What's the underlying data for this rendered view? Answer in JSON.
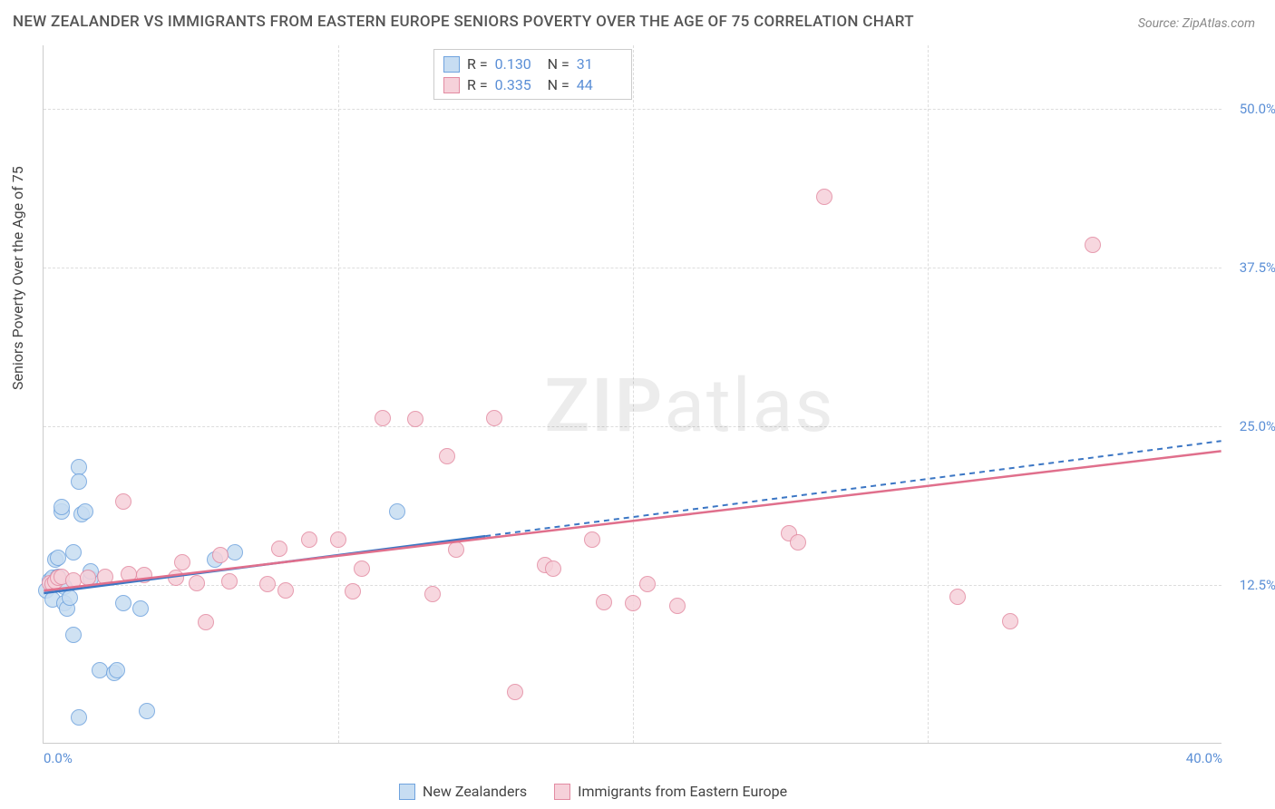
{
  "title": "NEW ZEALANDER VS IMMIGRANTS FROM EASTERN EUROPE SENIORS POVERTY OVER THE AGE OF 75 CORRELATION CHART",
  "source": "Source: ZipAtlas.com",
  "y_axis_label": "Seniors Poverty Over the Age of 75",
  "watermark_bold": "ZIP",
  "watermark_light": "atlas",
  "chart": {
    "type": "scatter",
    "xlim": [
      0,
      40
    ],
    "ylim": [
      0,
      55
    ],
    "xticks": [
      {
        "v": 0,
        "label": "0.0%",
        "anchor": "start"
      },
      {
        "v": 40,
        "label": "40.0%",
        "anchor": "end"
      }
    ],
    "yticks": [
      {
        "v": 12.5,
        "label": "12.5%"
      },
      {
        "v": 25.0,
        "label": "25.0%"
      },
      {
        "v": 37.5,
        "label": "37.5%"
      },
      {
        "v": 50.0,
        "label": "50.0%"
      }
    ],
    "xgrid": [
      10,
      20,
      30
    ],
    "ygrid": [
      12.5,
      25.0,
      37.5,
      50.0
    ],
    "background_color": "#ffffff",
    "grid_color": "#dddddd",
    "point_radius": 9,
    "point_border_width": 1.4,
    "series": [
      {
        "name": "New Zealanders",
        "fill": "#c7ddf2",
        "stroke": "#6fa3de",
        "R": "0.130",
        "N": "31",
        "trend": {
          "x1": 0,
          "y1": 11.8,
          "x2": 15,
          "y2": 16.3,
          "color": "#3b76c4",
          "dash_to": 40,
          "dash_y2": 23.8
        },
        "points": [
          [
            0.1,
            12.0
          ],
          [
            0.2,
            12.8
          ],
          [
            0.3,
            11.3
          ],
          [
            0.3,
            13.0
          ],
          [
            0.4,
            14.4
          ],
          [
            0.5,
            14.6
          ],
          [
            0.5,
            13.1
          ],
          [
            0.6,
            18.2
          ],
          [
            0.6,
            18.6
          ],
          [
            0.7,
            12.3
          ],
          [
            0.7,
            11.0
          ],
          [
            0.8,
            10.6
          ],
          [
            0.9,
            11.4
          ],
          [
            1.0,
            15.0
          ],
          [
            1.2,
            21.7
          ],
          [
            1.3,
            18.0
          ],
          [
            1.4,
            18.2
          ],
          [
            1.6,
            12.9
          ],
          [
            1.6,
            13.5
          ],
          [
            1.9,
            5.7
          ],
          [
            2.4,
            5.5
          ],
          [
            2.5,
            5.7
          ],
          [
            2.7,
            11.0
          ],
          [
            1.0,
            8.5
          ],
          [
            1.2,
            2.0
          ],
          [
            3.5,
            2.5
          ],
          [
            1.2,
            20.6
          ],
          [
            3.3,
            10.6
          ],
          [
            5.8,
            14.4
          ],
          [
            6.5,
            15.0
          ],
          [
            12.0,
            18.2
          ]
        ]
      },
      {
        "name": "Immigrants from Eastern Europe",
        "fill": "#f6d1da",
        "stroke": "#e38ba2",
        "R": "0.335",
        "N": "44",
        "trend": {
          "x1": 0,
          "y1": 12.0,
          "x2": 40,
          "y2": 23.0,
          "color": "#e06f8c"
        },
        "points": [
          [
            0.2,
            12.6
          ],
          [
            0.3,
            12.5
          ],
          [
            0.4,
            12.7
          ],
          [
            0.5,
            13.0
          ],
          [
            0.6,
            13.1
          ],
          [
            1.0,
            12.8
          ],
          [
            1.5,
            13.0
          ],
          [
            2.1,
            13.1
          ],
          [
            2.7,
            19.0
          ],
          [
            2.9,
            13.3
          ],
          [
            3.4,
            13.2
          ],
          [
            4.5,
            13.0
          ],
          [
            4.7,
            14.2
          ],
          [
            5.2,
            12.6
          ],
          [
            5.5,
            9.5
          ],
          [
            6.0,
            14.8
          ],
          [
            6.3,
            12.7
          ],
          [
            7.6,
            12.5
          ],
          [
            8.0,
            15.3
          ],
          [
            8.2,
            12.0
          ],
          [
            9.0,
            16.0
          ],
          [
            10.0,
            16.0
          ],
          [
            10.5,
            11.9
          ],
          [
            10.8,
            13.7
          ],
          [
            11.5,
            25.6
          ],
          [
            12.6,
            25.5
          ],
          [
            13.2,
            11.7
          ],
          [
            13.7,
            22.6
          ],
          [
            15.3,
            25.6
          ],
          [
            16.0,
            4.0
          ],
          [
            17.0,
            14.0
          ],
          [
            17.3,
            13.7
          ],
          [
            18.6,
            16.0
          ],
          [
            19.0,
            11.1
          ],
          [
            20.0,
            11.0
          ],
          [
            20.5,
            12.5
          ],
          [
            21.5,
            10.8
          ],
          [
            25.3,
            16.5
          ],
          [
            25.6,
            15.8
          ],
          [
            26.5,
            43.0
          ],
          [
            31.0,
            11.5
          ],
          [
            32.8,
            9.6
          ],
          [
            35.6,
            39.2
          ],
          [
            14.0,
            15.2
          ]
        ]
      }
    ]
  },
  "stats_box": {
    "r_label": "R =",
    "n_label": "N ="
  }
}
